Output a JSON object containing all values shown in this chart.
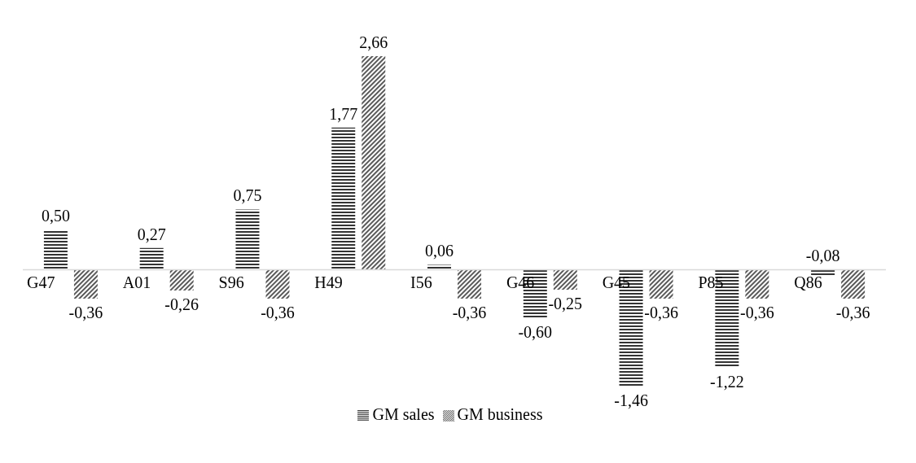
{
  "chart_data": {
    "type": "bar",
    "categories": [
      "G47",
      "A01",
      "S96",
      "H49",
      "I56",
      "G46",
      "G45",
      "P85",
      "Q86"
    ],
    "series": [
      {
        "name": "GM sales",
        "color": "#000000",
        "values": [
          0.5,
          0.27,
          0.75,
          1.77,
          0.06,
          -0.6,
          -1.46,
          -1.22,
          -0.08
        ],
        "value_labels": [
          "0,50",
          "0,27",
          "0,75",
          "1,77",
          "0,06",
          "-0,60",
          "-1,46",
          "-1,22",
          "-0,08"
        ]
      },
      {
        "name": "GM business",
        "color": "#000000",
        "values": [
          -0.36,
          -0.26,
          -0.36,
          2.66,
          -0.36,
          -0.25,
          -0.36,
          -0.36,
          -0.36
        ],
        "value_labels": [
          "-0,36",
          "-0,26",
          "-0,36",
          "2,66",
          "-0,36",
          "-0,25",
          "-0,36",
          "-0,36",
          "-0,36"
        ]
      }
    ],
    "legend": "bottom",
    "grid": false
  }
}
